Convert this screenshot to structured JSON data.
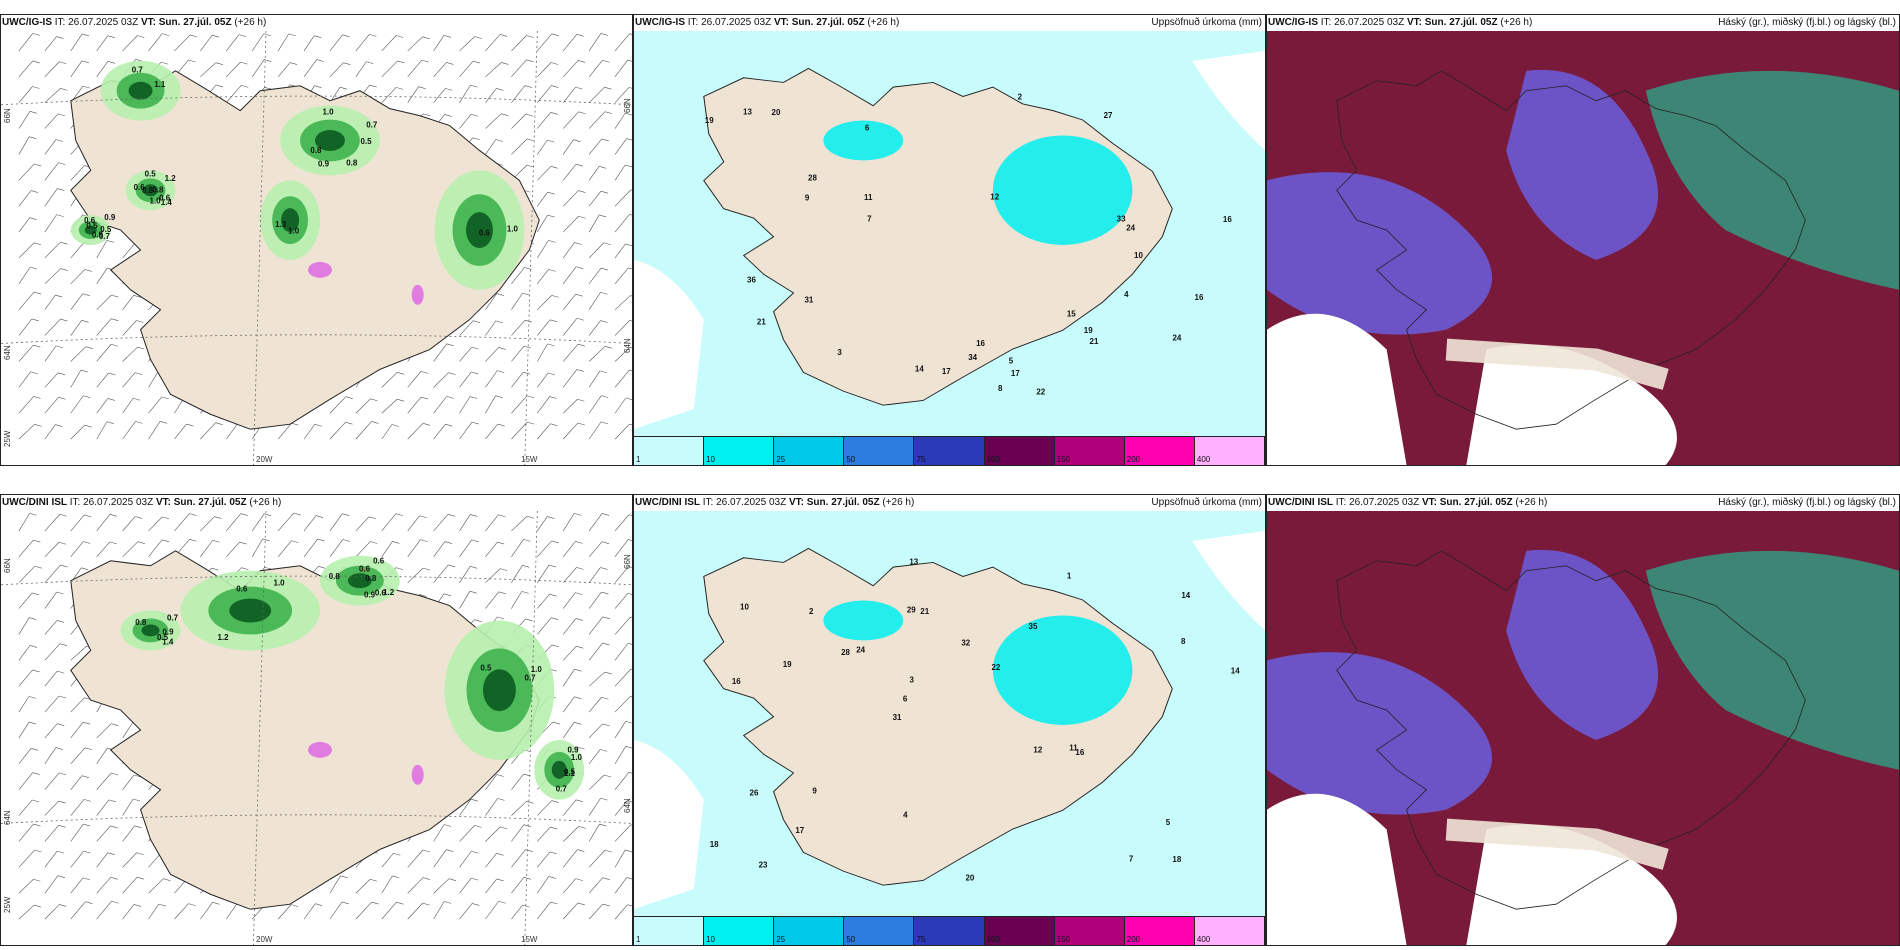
{
  "panels": {
    "top": {
      "wind": {
        "model": "UWC/IG-IS",
        "it": "26.07.2025 03Z",
        "vt_label": "VT:",
        "vt": "Sun. 27.júl. 05Z",
        "lead": "(+26 h)"
      },
      "precip": {
        "model": "UWC/IG-IS",
        "it": "26.07.2025 03Z",
        "vt_label": "VT:",
        "vt": "Sun. 27.júl. 05Z",
        "lead": "(+26 h)",
        "title": "Uppsöfnuð úrkoma (mm)"
      },
      "cloud": {
        "model": "UWC/IG-IS",
        "it": "26.07.2025 03Z",
        "vt_label": "VT:",
        "vt": "Sun. 27.júl. 05Z",
        "lead": "(+26 h)",
        "title": "Háský (gr.), miðský (fj.bl.) og lágský (bl.)"
      }
    },
    "bottom": {
      "wind": {
        "model": "UWC/DINI ISL",
        "it": "26.07.2025 03Z",
        "vt_label": "VT:",
        "vt": "Sun. 27.júl. 05Z",
        "lead": "(+26 h)"
      },
      "precip": {
        "model": "UWC/DINI ISL",
        "it": "26.07.2025 03Z",
        "vt_label": "VT:",
        "vt": "Sun. 27.júl. 05Z",
        "lead": "(+26 h)",
        "title": "Uppsöfnuð úrkoma (mm)"
      },
      "cloud": {
        "model": "UWC/DINI ISL",
        "it": "26.07.2025 03Z",
        "vt_label": "VT:",
        "vt": "Sun. 27.júl. 05Z",
        "lead": "(+26 h)",
        "title": "Háský (gr.), miðský (fj.bl.) og lágský (bl.)"
      }
    }
  },
  "axis_labels": {
    "lat_66": "66N",
    "lat_64": "64N",
    "lon_25": "25W",
    "lon_20": "20W",
    "lon_15": "15W",
    "lat_66_right": "66N",
    "lat_64_right": "64N"
  },
  "colorbar": {
    "labels": [
      "1",
      "10",
      "25",
      "50",
      "75",
      "100",
      "150",
      "200",
      "400"
    ],
    "colors": [
      "#c8fbfb",
      "#00f0f0",
      "#00c8e8",
      "#2d7de0",
      "#2a3ab8",
      "#6a0050",
      "#b0007a",
      "#ff00b0",
      "#ffb0ff"
    ]
  },
  "values": {
    "top_wind": [
      "0.7",
      "1.2",
      "0.5",
      "0.8",
      "0.6",
      "0.8",
      "1.0",
      "1.1",
      "1.0",
      "0.9",
      "0.7",
      "0.5",
      "0.9",
      "0.6",
      "1.0",
      "0.8",
      "0.9",
      "0.6",
      "0.5",
      "1.3",
      "1.0",
      "0.7",
      "0.8",
      "0.6",
      "1.4",
      "0.5"
    ],
    "top_precip": [
      "14",
      "16",
      "12",
      "19",
      "16",
      "21",
      "34",
      "36",
      "33",
      "28",
      "31",
      "24",
      "17",
      "22",
      "27",
      "17",
      "19",
      "21",
      "16",
      "24",
      "20",
      "10",
      "9",
      "7",
      "5",
      "3",
      "2",
      "8",
      "6",
      "11",
      "13",
      "15",
      "4"
    ],
    "bottom_wind": [
      "0.7",
      "1.2",
      "0.6",
      "0.9",
      "0.5",
      "1.2",
      "1.0",
      "0.8",
      "0.9",
      "0.6",
      "0.5",
      "1.1",
      "0.7",
      "0.6",
      "1.0",
      "0.8",
      "0.9",
      "0.5",
      "1.4",
      "0.6",
      "0.8",
      "1.0",
      "0.7"
    ],
    "bottom_precip": [
      "18",
      "16",
      "14",
      "31",
      "35",
      "23",
      "29",
      "32",
      "26",
      "24",
      "18",
      "17",
      "21",
      "22",
      "16",
      "10",
      "13",
      "14",
      "12",
      "8",
      "6",
      "4",
      "3",
      "2",
      "1",
      "9",
      "7",
      "5",
      "11",
      "20",
      "28",
      "19"
    ]
  },
  "colors": {
    "land": "#efe3d4",
    "green_light": "#b6f0ad",
    "green_mid": "#3fb34f",
    "green_dark": "#0b5a21",
    "cyan_bg": "#c8fbfb",
    "cyan_mid": "#00f0f0",
    "cloud_purple": "#6a5ad6",
    "cloud_maroon": "#7a1a3a",
    "cloud_teal": "#2aa98a"
  }
}
